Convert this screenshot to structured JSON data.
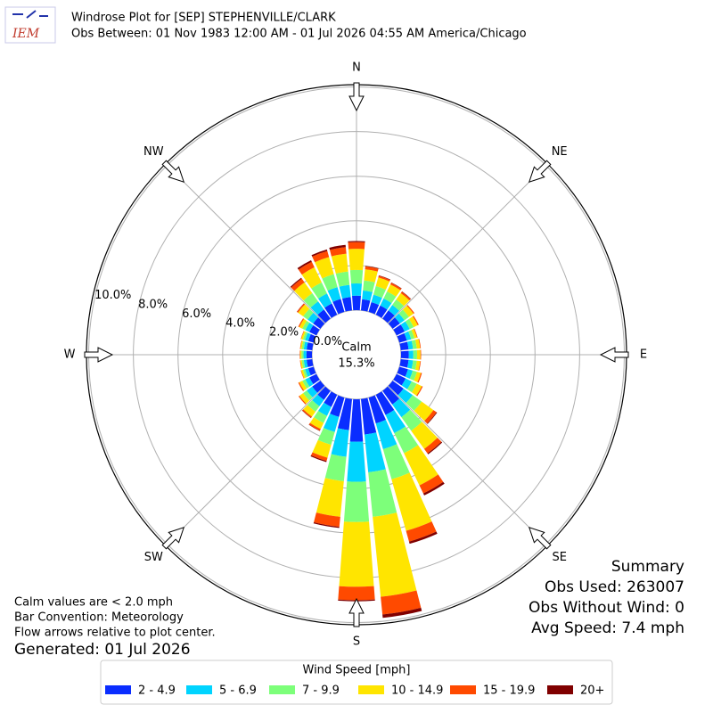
{
  "chart_data": {
    "type": "windrose",
    "logo_text": "IEM",
    "title": "Windrose Plot for [SEP] STEPHENVILLE/CLARK",
    "subtitle": "Obs Between: 01 Nov 1983 12:00 AM - 01 Jul 2026 04:55 AM America/Chicago",
    "calm_label": "Calm",
    "calm_value_label": "15.3%",
    "compass_labels": [
      "N",
      "NE",
      "E",
      "SE",
      "S",
      "SW",
      "W",
      "NW"
    ],
    "x": [
      10,
      20,
      30,
      40,
      50,
      60,
      70,
      80,
      90,
      100,
      110,
      120,
      130,
      140,
      150,
      160,
      170,
      180,
      190,
      200,
      210,
      220,
      230,
      240,
      250,
      260,
      270,
      280,
      290,
      300,
      310,
      320,
      330,
      340,
      350,
      360
    ],
    "ylim": [
      0,
      10.1
    ],
    "yticks": [
      {
        "value": 0,
        "label": "0.0%"
      },
      {
        "value": 2,
        "label": "2.0%"
      },
      {
        "value": 4,
        "label": "4.0%"
      },
      {
        "value": 6,
        "label": "6.0%"
      },
      {
        "value": 8,
        "label": "8.0%"
      },
      {
        "value": 10,
        "label": "10.0%"
      }
    ],
    "grid": true,
    "legend_title": "Wind Speed [mph]",
    "series": [
      {
        "name": "2 - 4.9",
        "color": "#0a2dff",
        "values": [
          0.5,
          0.45,
          0.45,
          0.45,
          0.4,
          0.4,
          0.35,
          0.35,
          0.35,
          0.35,
          0.4,
          0.45,
          0.6,
          0.75,
          1.0,
          1.2,
          1.6,
          1.9,
          1.4,
          0.9,
          0.6,
          0.5,
          0.45,
          0.35,
          0.25,
          0.25,
          0.25,
          0.25,
          0.25,
          0.35,
          0.4,
          0.5,
          0.55,
          0.6,
          0.6,
          0.65
        ]
      },
      {
        "name": "5 - 6.9",
        "color": "#00d4ff",
        "values": [
          0.4,
          0.35,
          0.35,
          0.3,
          0.25,
          0.25,
          0.2,
          0.2,
          0.2,
          0.2,
          0.22,
          0.3,
          0.5,
          0.7,
          0.9,
          1.2,
          1.7,
          1.8,
          1.2,
          0.7,
          0.45,
          0.35,
          0.3,
          0.2,
          0.15,
          0.13,
          0.13,
          0.13,
          0.15,
          0.2,
          0.3,
          0.45,
          0.5,
          0.55,
          0.55,
          0.55
        ]
      },
      {
        "name": "7 - 9.9",
        "color": "#7dff7a",
        "values": [
          0.45,
          0.4,
          0.35,
          0.3,
          0.25,
          0.2,
          0.15,
          0.17,
          0.17,
          0.17,
          0.2,
          0.25,
          0.5,
          0.75,
          1.0,
          1.4,
          2.0,
          1.8,
          1.1,
          0.6,
          0.35,
          0.3,
          0.2,
          0.15,
          0.1,
          0.09,
          0.09,
          0.09,
          0.1,
          0.15,
          0.25,
          0.45,
          0.55,
          0.6,
          0.6,
          0.6
        ]
      },
      {
        "name": "10 - 14.9",
        "color": "#ffe500",
        "values": [
          0.5,
          0.4,
          0.35,
          0.35,
          0.25,
          0.2,
          0.12,
          0.15,
          0.15,
          0.15,
          0.18,
          0.25,
          0.65,
          1.0,
          1.6,
          2.4,
          3.6,
          2.9,
          1.6,
          0.6,
          0.3,
          0.27,
          0.2,
          0.15,
          0.08,
          0.06,
          0.06,
          0.06,
          0.08,
          0.15,
          0.28,
          0.6,
          0.75,
          0.8,
          0.8,
          0.95
        ]
      },
      {
        "name": "15 - 19.9",
        "color": "#ff4a00",
        "values": [
          0.13,
          0.08,
          0.08,
          0.08,
          0.05,
          0.05,
          0.03,
          0.03,
          0.03,
          0.03,
          0.05,
          0.05,
          0.17,
          0.25,
          0.4,
          0.5,
          0.8,
          0.6,
          0.45,
          0.15,
          0.08,
          0.06,
          0.05,
          0.05,
          0.02,
          0.02,
          0.02,
          0.02,
          0.02,
          0.05,
          0.06,
          0.2,
          0.27,
          0.28,
          0.3,
          0.3
        ]
      },
      {
        "name": "20+",
        "color": "#800000",
        "values": [
          0.02,
          0.02,
          0.02,
          0.02,
          0,
          0,
          0,
          0,
          0,
          0,
          0,
          0,
          0.03,
          0.05,
          0.1,
          0.1,
          0.15,
          0.05,
          0.05,
          0.05,
          0.02,
          0.02,
          0,
          0,
          0,
          0,
          0,
          0,
          0,
          0,
          0.01,
          0.05,
          0.08,
          0.07,
          0.1,
          0.05
        ]
      }
    ],
    "notes": [
      "Calm values are < 2.0 mph",
      "Bar Convention: Meteorology",
      "Flow arrows relative to plot center."
    ],
    "generated": "Generated: 01 Jul 2026",
    "summary": [
      "Summary",
      "Obs Used: 263007",
      "Obs Without Wind: 0",
      "Avg Speed: 7.4 mph"
    ]
  }
}
